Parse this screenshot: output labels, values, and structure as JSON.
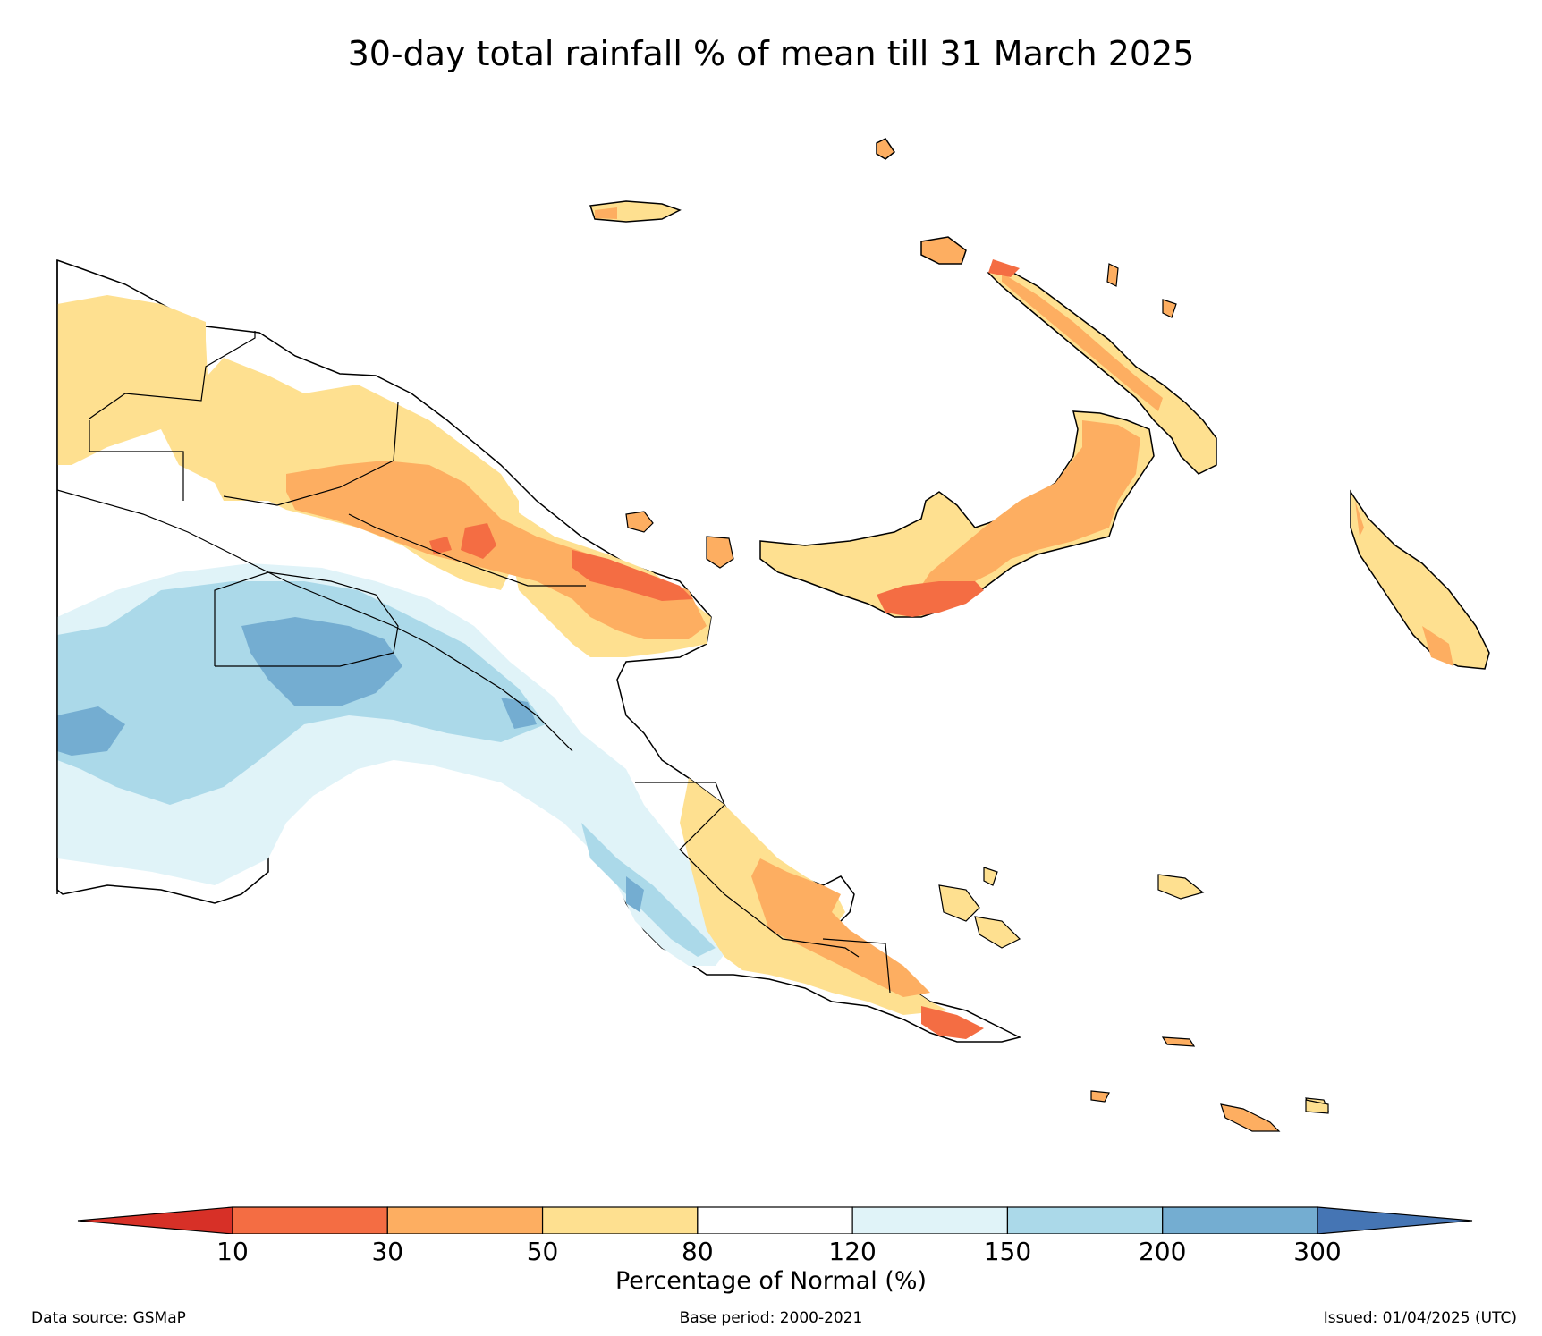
{
  "title": "30-day total rainfall % of mean till 31 March 2025",
  "colorbar": {
    "label": "Percentage of Normal (%)",
    "ticks": [
      "10",
      "30",
      "50",
      "80",
      "120",
      "150",
      "200",
      "300"
    ],
    "bins": [
      {
        "range": "<10",
        "color": "#d73027"
      },
      {
        "range": "10-30",
        "color": "#f46d43"
      },
      {
        "range": "30-50",
        "color": "#fdae61"
      },
      {
        "range": "50-80",
        "color": "#fee090"
      },
      {
        "range": "80-120",
        "color": "#ffffff"
      },
      {
        "range": "120-150",
        "color": "#e0f3f8"
      },
      {
        "range": "150-200",
        "color": "#abd9e9"
      },
      {
        "range": "200-300",
        "color": "#74add1"
      },
      {
        "range": ">300",
        "color": "#4575b4"
      }
    ]
  },
  "footer": {
    "source": "Data source: GSMaP",
    "base_period": "Base period: 2000-2021",
    "issued": "Issued: 01/04/2025 (UTC)"
  }
}
